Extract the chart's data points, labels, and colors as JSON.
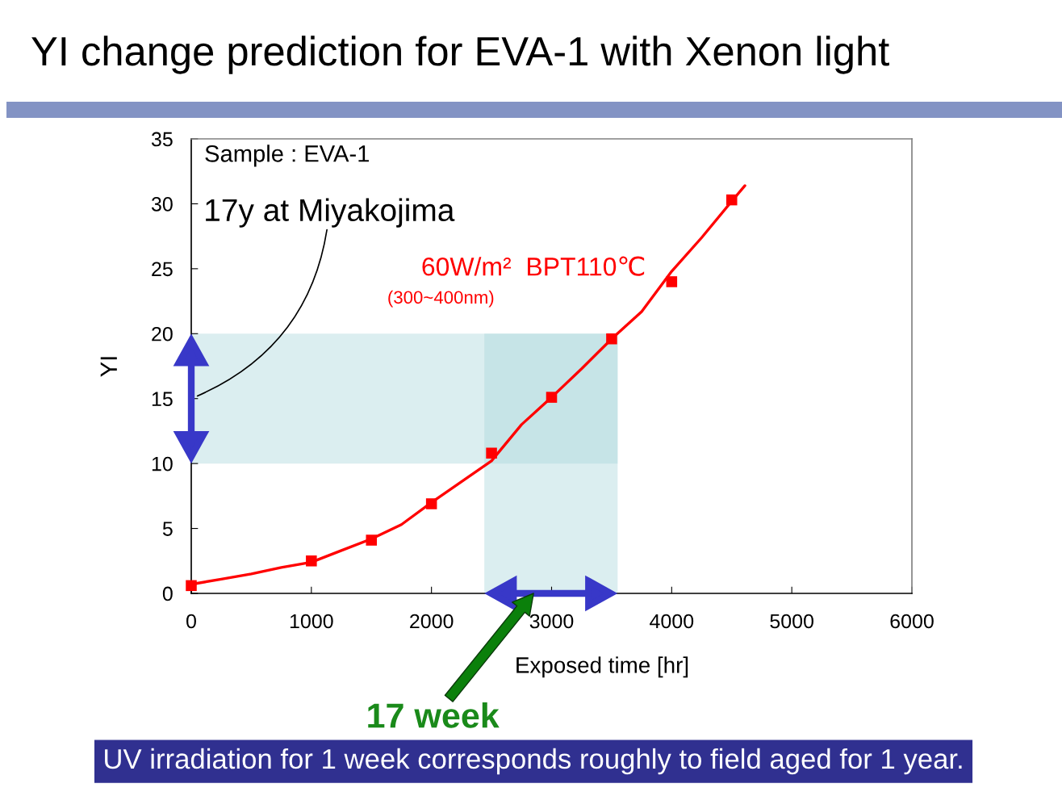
{
  "chart_data": {
    "type": "scatter",
    "title": "YI change prediction for EVA-1 with Xenon light",
    "xlabel": "Exposed time [hr]",
    "ylabel": "YI",
    "xlim": [
      0,
      6000
    ],
    "ylim": [
      0,
      35
    ],
    "xticks": [
      0,
      1000,
      2000,
      3000,
      4000,
      5000,
      6000
    ],
    "yticks": [
      0,
      5,
      10,
      15,
      20,
      25,
      30,
      35
    ],
    "grid": false,
    "legend": false,
    "series": [
      {
        "name": "60W/m²  BPT110℃",
        "color": "#ff0000",
        "marker": "square",
        "x": [
          0,
          1000,
          1500,
          2000,
          2500,
          3000,
          3500,
          4000,
          4500
        ],
        "values": [
          0.6,
          2.5,
          4.1,
          6.9,
          10.8,
          15.1,
          19.6,
          24.0,
          30.3
        ]
      },
      {
        "type": "line",
        "color": "#ff0000",
        "marker": "none",
        "line_style": "solid",
        "x": [
          0,
          250,
          500,
          750,
          1000,
          1250,
          1500,
          1750,
          2000,
          2250,
          2500,
          2750,
          3000,
          3250,
          3500,
          3750,
          4000,
          4250,
          4500,
          4610
        ],
        "values": [
          0.7,
          1.1,
          1.5,
          2.0,
          2.4,
          3.3,
          4.2,
          5.3,
          7.0,
          8.6,
          10.2,
          13.0,
          15.1,
          17.3,
          19.6,
          21.7,
          24.8,
          27.4,
          30.2,
          31.4
        ]
      }
    ],
    "bands": [
      {
        "axis": "y",
        "from": 10,
        "to": 20,
        "color": "#a9d7db"
      },
      {
        "axis": "x",
        "from": 2440,
        "to": 3550,
        "color": "#a9d7db"
      }
    ],
    "annotations": [
      "Sample : EVA-1",
      "17y at Miyakojima",
      "(300~400nm)",
      "17 week",
      "UV irradiation for 1 week corresponds roughly to field aged for 1 year."
    ]
  }
}
